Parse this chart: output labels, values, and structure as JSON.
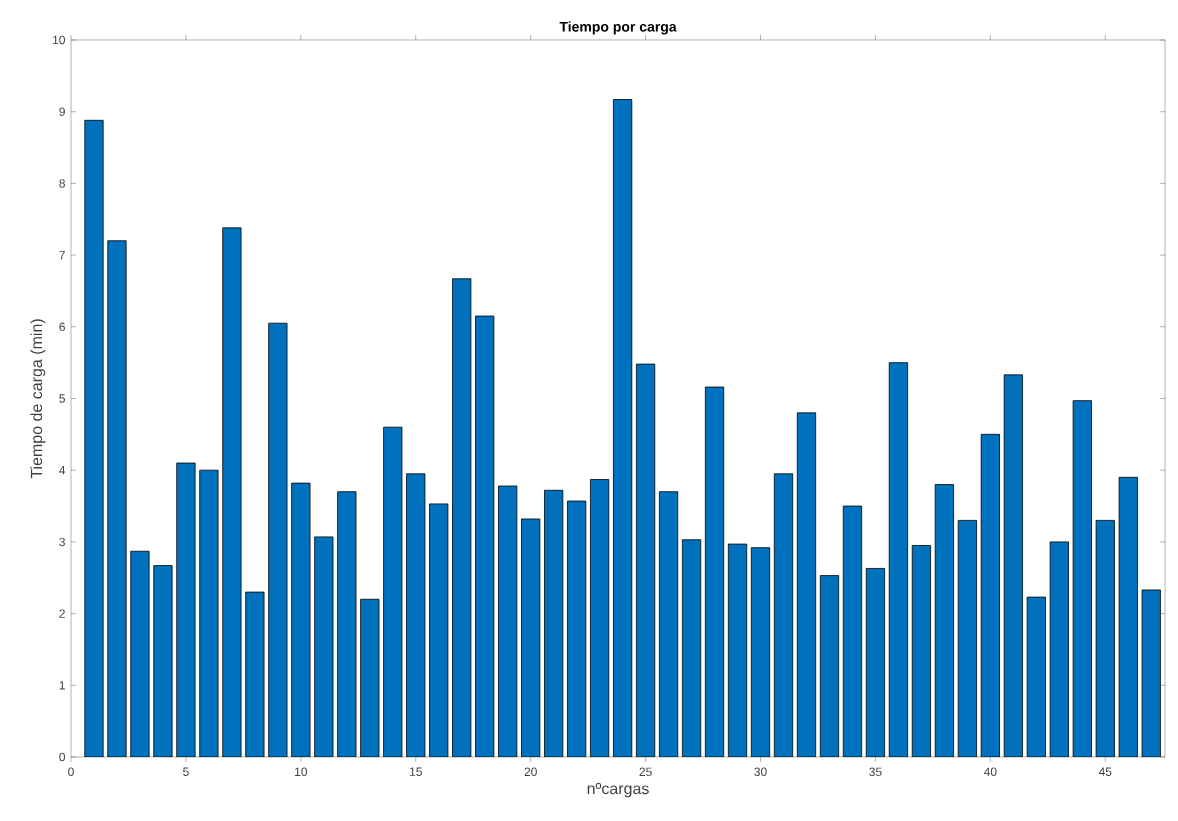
{
  "chart_data": {
    "type": "bar",
    "title": "Tiempo por carga",
    "xlabel": "nºcargas",
    "ylabel": "Tiempo de carga (min)",
    "x": [
      1,
      2,
      3,
      4,
      5,
      6,
      7,
      8,
      9,
      10,
      11,
      12,
      13,
      14,
      15,
      16,
      17,
      18,
      19,
      20,
      21,
      22,
      23,
      24,
      25,
      26,
      27,
      28,
      29,
      30,
      31,
      32,
      33,
      34,
      35,
      36,
      37,
      38,
      39,
      40,
      41,
      42,
      43,
      44,
      45,
      46,
      47
    ],
    "values": [
      8.88,
      7.2,
      2.87,
      2.67,
      4.1,
      4.0,
      7.38,
      2.3,
      6.05,
      3.82,
      3.07,
      3.7,
      2.2,
      4.6,
      3.95,
      3.53,
      6.67,
      6.15,
      3.78,
      3.32,
      3.72,
      3.57,
      3.87,
      9.17,
      5.48,
      3.7,
      3.03,
      5.16,
      2.97,
      2.92,
      3.95,
      4.8,
      2.53,
      3.5,
      2.63,
      5.5,
      2.95,
      3.8,
      3.3,
      4.5,
      5.33,
      2.23,
      3.0,
      4.97,
      3.3,
      3.9,
      2.33
    ],
    "color": "#0072bd",
    "xlim": [
      0,
      47.6
    ],
    "ylim": [
      0,
      10
    ],
    "xticks": [
      0,
      5,
      10,
      15,
      20,
      25,
      30,
      35,
      40,
      45
    ],
    "yticks": [
      0,
      1,
      2,
      3,
      4,
      5,
      6,
      7,
      8,
      9,
      10
    ]
  }
}
